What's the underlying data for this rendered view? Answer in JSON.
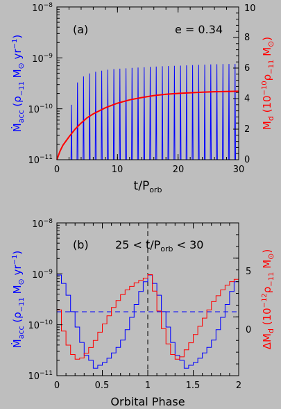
{
  "colors": {
    "background": "#bebebe",
    "accretion": "#0000ff",
    "disk_mass": "#ff0000",
    "frame": "#000000"
  },
  "chart_data": [
    {
      "type": "line",
      "panel": "a",
      "panel_label": "(a)",
      "annotation": "e = 0.34",
      "xlabel_main": "t/P",
      "xlabel_sub": "orb",
      "xlim": [
        0,
        30
      ],
      "x_ticks": [
        0,
        10,
        20,
        30
      ],
      "x_tick_labels": [
        "0",
        "10",
        "20",
        "30"
      ],
      "left_axis": {
        "scale": "log",
        "ylim": [
          1e-11,
          1e-08
        ],
        "tick_labels": [
          {
            "base": "10",
            "exp": "−11"
          },
          {
            "base": "10",
            "exp": "−10"
          },
          {
            "base": "10",
            "exp": "−9"
          },
          {
            "base": "10",
            "exp": "−8"
          }
        ],
        "label_parts": [
          "Ṁ",
          "acc",
          " (ρ",
          "−11",
          " M",
          "⊙",
          " yr",
          "−1",
          ")"
        ]
      },
      "right_axis": {
        "scale": "linear",
        "ylim": [
          0,
          10
        ],
        "ticks": [
          0,
          2,
          4,
          6,
          8,
          10
        ],
        "tick_labels": [
          "0",
          "2",
          "4",
          "6",
          "8",
          "10"
        ],
        "label_parts": [
          "M",
          "d",
          " (10",
          "−10",
          "ρ",
          "−11",
          " M",
          "⊙",
          ")"
        ]
      },
      "series": [
        {
          "axis": "left",
          "style": "periodic_spikes",
          "period": 1.0,
          "first_spike": 2.4,
          "envelope_x": [
            2.4,
            3,
            4,
            5,
            6,
            8,
            10,
            12,
            15,
            18,
            20,
            22,
            25,
            28,
            30
          ],
          "peak_values": [
            1.2e-10,
            2.8e-10,
            4e-10,
            4.8e-10,
            5.2e-10,
            5.8e-10,
            6.1e-10,
            6.3e-10,
            6.6e-10,
            6.9e-10,
            7e-10,
            7.2e-10,
            7.4e-10,
            7.6e-10,
            7.6e-10
          ],
          "floor_value": 1e-11
        },
        {
          "axis": "right",
          "style": "smooth",
          "x": [
            0,
            0.5,
            1,
            2,
            3,
            4,
            5,
            6,
            8,
            10,
            12,
            14,
            16,
            18,
            20,
            22,
            24,
            26,
            28,
            30
          ],
          "values": [
            0,
            0.55,
            0.95,
            1.5,
            2.0,
            2.4,
            2.75,
            3.0,
            3.4,
            3.7,
            3.92,
            4.07,
            4.2,
            4.28,
            4.34,
            4.38,
            4.42,
            4.45,
            4.47,
            4.48
          ]
        }
      ]
    },
    {
      "type": "line",
      "panel": "b",
      "panel_label": "(b)",
      "annotation_parts": [
        "25 < t/P",
        "orb",
        " < 30"
      ],
      "xlabel": "Orbital Phase",
      "xlim": [
        0,
        2
      ],
      "x_ticks": [
        0,
        0.5,
        1,
        1.5,
        2
      ],
      "x_tick_labels": [
        "0",
        "0.5",
        "1",
        "1.5",
        "2"
      ],
      "left_axis": {
        "scale": "log",
        "ylim": [
          1e-11,
          1e-08
        ],
        "tick_labels": [
          {
            "base": "10",
            "exp": "−11"
          },
          {
            "base": "10",
            "exp": "−10"
          },
          {
            "base": "10",
            "exp": "−9"
          },
          {
            "base": "10",
            "exp": "−8"
          }
        ],
        "label_parts": [
          "Ṁ",
          "acc",
          " (ρ",
          "−11",
          " M",
          "⊙",
          " yr",
          "−1",
          ")"
        ]
      },
      "right_axis": {
        "scale": "linear",
        "ylim": [
          -5,
          8
        ],
        "ticks": [
          0,
          5
        ],
        "tick_labels": [
          "0",
          "5"
        ],
        "label_parts": [
          "ΔM",
          "d",
          " (10",
          "−12",
          "ρ",
          "−11",
          " M",
          "⊙",
          ")"
        ]
      },
      "reference_lines": [
        {
          "orientation": "vertical",
          "x": 1.0,
          "style": "dashed",
          "color": "#000000"
        },
        {
          "orientation": "horizontal",
          "axis": "left",
          "y": 1.8e-10,
          "style": "dashed",
          "color": "#0000ff"
        }
      ],
      "series": [
        {
          "axis": "left",
          "style": "step",
          "x": [
            0.0,
            0.05,
            0.1,
            0.15,
            0.2,
            0.25,
            0.3,
            0.35,
            0.4,
            0.45,
            0.5,
            0.55,
            0.6,
            0.65,
            0.7,
            0.75,
            0.8,
            0.85,
            0.9,
            0.95,
            1.0,
            1.05,
            1.1,
            1.15,
            1.2,
            1.25,
            1.3,
            1.35,
            1.4,
            1.45,
            1.5,
            1.55,
            1.6,
            1.65,
            1.7,
            1.75,
            1.8,
            1.85,
            1.9,
            1.95,
            2.0
          ],
          "values": [
            9.5e-10,
            6.5e-10,
            3.8e-10,
            1.8e-10,
            9e-11,
            4.5e-11,
            2.5e-11,
            2e-11,
            1.4e-11,
            1.6e-11,
            1.8e-11,
            2.2e-11,
            2.8e-11,
            3.6e-11,
            5e-11,
            8e-11,
            1.4e-10,
            2.5e-10,
            4.5e-10,
            7e-10,
            9.5e-10,
            6.5e-10,
            3.8e-10,
            1.8e-10,
            9e-11,
            4.5e-11,
            2.5e-11,
            2e-11,
            1.4e-11,
            1.6e-11,
            1.8e-11,
            2.2e-11,
            2.8e-11,
            3.6e-11,
            5e-11,
            8e-11,
            1.4e-10,
            2.5e-10,
            4.5e-10,
            7e-10,
            9.5e-10
          ]
        },
        {
          "axis": "right",
          "style": "step",
          "x": [
            0.0,
            0.05,
            0.1,
            0.15,
            0.2,
            0.25,
            0.3,
            0.35,
            0.4,
            0.45,
            0.5,
            0.55,
            0.6,
            0.65,
            0.7,
            0.75,
            0.8,
            0.85,
            0.9,
            0.95,
            1.0,
            1.05,
            1.1,
            1.15,
            1.2,
            1.25,
            1.3,
            1.35,
            1.4,
            1.45,
            1.5,
            1.55,
            1.6,
            1.65,
            1.7,
            1.75,
            1.8,
            1.85,
            1.9,
            1.95,
            2.0
          ],
          "values": [
            0.6,
            -1.2,
            -2.4,
            -3.2,
            -3.6,
            -3.5,
            -3.1,
            -2.6,
            -2.0,
            -1.3,
            -0.6,
            0.1,
            0.8,
            1.4,
            1.9,
            2.3,
            2.6,
            2.9,
            3.1,
            3.3,
            3.6,
            2.2,
            0.5,
            -1.0,
            -2.3,
            -3.2,
            -3.6,
            -3.4,
            -2.8,
            -2.2,
            -1.5,
            -0.8,
            -0.1,
            0.6,
            1.3,
            1.8,
            2.3,
            2.7,
            3.0,
            3.2,
            3.6
          ]
        }
      ]
    }
  ]
}
